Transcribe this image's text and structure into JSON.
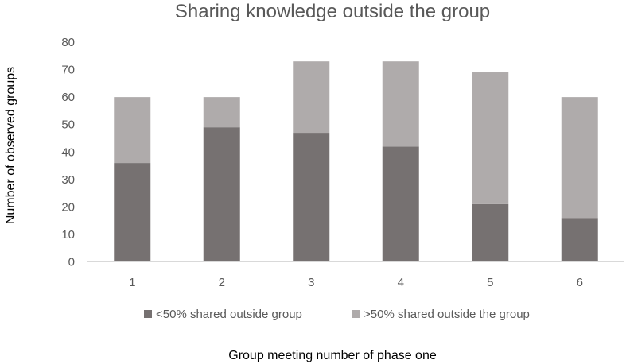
{
  "chart_data": {
    "type": "bar",
    "stacked": true,
    "title": "Sharing knowledge outside the group",
    "xlabel": "Group meeting number of phase one",
    "ylabel": "Number of observed groups",
    "categories": [
      "1",
      "2",
      "3",
      "4",
      "5",
      "6"
    ],
    "series": [
      {
        "name": "<50% shared outside group",
        "color": "#767171",
        "values": [
          36,
          49,
          47,
          42,
          21,
          16
        ]
      },
      {
        "name": ">50% shared outside the group",
        "color": "#afabab",
        "values": [
          24,
          11,
          26,
          31,
          48,
          44
        ]
      }
    ],
    "yticks": [
      "0",
      "10",
      "20",
      "30",
      "40",
      "50",
      "60",
      "70",
      "80"
    ],
    "ylim": [
      0,
      80
    ],
    "grid": false,
    "legend_position": "bottom"
  }
}
